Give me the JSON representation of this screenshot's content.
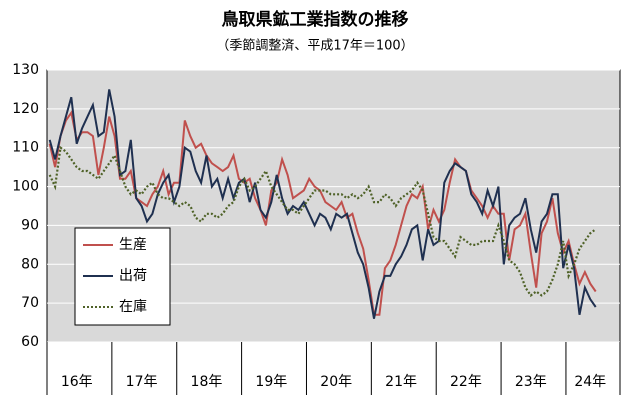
{
  "chart_data": {
    "type": "line",
    "title": "鳥取県鉱工業指数の推移",
    "subtitle": "（季節調整済、平成17年＝100）",
    "categories": [
      null,
      null,
      null,
      null,
      null,
      "16年",
      null,
      null,
      null,
      null,
      null,
      null,
      null,
      null,
      null,
      null,
      null,
      "17年",
      null,
      null,
      null,
      null,
      null,
      null,
      null,
      null,
      null,
      null,
      null,
      "18年",
      null,
      null,
      null,
      null,
      null,
      null,
      null,
      null,
      null,
      null,
      null,
      "19年",
      null,
      null,
      null,
      null,
      null,
      null,
      null,
      null,
      null,
      null,
      null,
      "20年",
      null,
      null,
      null,
      null,
      null,
      null,
      null,
      null,
      null,
      null,
      null,
      "21年",
      null,
      null,
      null,
      null,
      null,
      null,
      null,
      null,
      null,
      null,
      null,
      "22年",
      null,
      null,
      null,
      null,
      null,
      null,
      null,
      null,
      null,
      null,
      null,
      "23年",
      null,
      null,
      null,
      null,
      null,
      null,
      null,
      null,
      null,
      null,
      "24年",
      null,
      null,
      null,
      null,
      null
    ],
    "ylim": [
      60,
      130
    ],
    "yticks": [
      60,
      70,
      80,
      90,
      100,
      110,
      120,
      130
    ],
    "grid": true,
    "legend": "lower-left",
    "series": [
      {
        "name": "生産",
        "color": "#c0504d",
        "dash": "solid",
        "values": [
          111,
          105,
          113,
          117,
          119,
          112,
          114,
          114,
          113,
          103,
          110,
          118,
          113,
          102,
          102,
          104,
          97,
          96,
          95,
          98,
          100,
          104,
          98,
          101,
          101,
          117,
          113,
          110,
          111,
          108,
          106,
          105,
          104,
          105,
          108,
          102,
          101,
          102,
          97,
          94,
          90,
          99,
          101,
          107,
          103,
          97,
          98,
          99,
          102,
          100,
          99,
          96,
          95,
          94,
          96,
          92,
          93,
          88,
          84,
          76,
          67,
          67,
          79,
          81,
          85,
          90,
          95,
          98,
          97,
          100,
          89,
          94,
          91,
          94,
          101,
          107,
          105,
          104,
          99,
          97,
          95,
          92,
          95,
          93,
          93,
          81,
          89,
          90,
          93,
          83,
          74,
          88,
          91,
          97,
          88,
          83,
          86,
          80,
          75,
          78,
          75,
          73,
          null,
          null,
          null,
          null
        ]
      },
      {
        "name": "出荷",
        "color": "#1f3050",
        "dash": "solid",
        "values": [
          112,
          107,
          113,
          118,
          123,
          111,
          115,
          118,
          121,
          113,
          114,
          125,
          118,
          103,
          104,
          112,
          97,
          95,
          91,
          93,
          98,
          101,
          103,
          96,
          100,
          110,
          109,
          104,
          101,
          108,
          100,
          102,
          97,
          102,
          97,
          101,
          102,
          96,
          101,
          94,
          92,
          96,
          103,
          97,
          93,
          95,
          94,
          96,
          93,
          90,
          93,
          92,
          89,
          93,
          92,
          93,
          88,
          83,
          80,
          74,
          66,
          73,
          77,
          77,
          80,
          82,
          85,
          89,
          90,
          81,
          89,
          85,
          86,
          101,
          104,
          106,
          105,
          104,
          98,
          96,
          93,
          99,
          95,
          100,
          80,
          90,
          92,
          93,
          97,
          89,
          83,
          91,
          93,
          98,
          98,
          79,
          85,
          79,
          67,
          74,
          71,
          69,
          null,
          null,
          null,
          null
        ]
      },
      {
        "name": "在庫",
        "color": "#4f6228",
        "dash": "dotted",
        "values": [
          103,
          100,
          110,
          109,
          107,
          105,
          104,
          104,
          103,
          102,
          104,
          106,
          108,
          104,
          100,
          98,
          99,
          98,
          100,
          101,
          98,
          97,
          97,
          96,
          95,
          96,
          95,
          92,
          91,
          93,
          93,
          92,
          93,
          95,
          96,
          100,
          102,
          99,
          100,
          102,
          104,
          100,
          98,
          96,
          94,
          94,
          93,
          95,
          97,
          99,
          99,
          99,
          98,
          98,
          98,
          97,
          98,
          97,
          98,
          100,
          96,
          96,
          98,
          97,
          95,
          97,
          98,
          99,
          101,
          99,
          93,
          87,
          86,
          86,
          84,
          82,
          87,
          86,
          85,
          85,
          86,
          86,
          86,
          90,
          86,
          81,
          80,
          78,
          74,
          72,
          73,
          72,
          73,
          76,
          80,
          86,
          77,
          80,
          84,
          86,
          88,
          89,
          null,
          null,
          null,
          null
        ]
      }
    ]
  }
}
